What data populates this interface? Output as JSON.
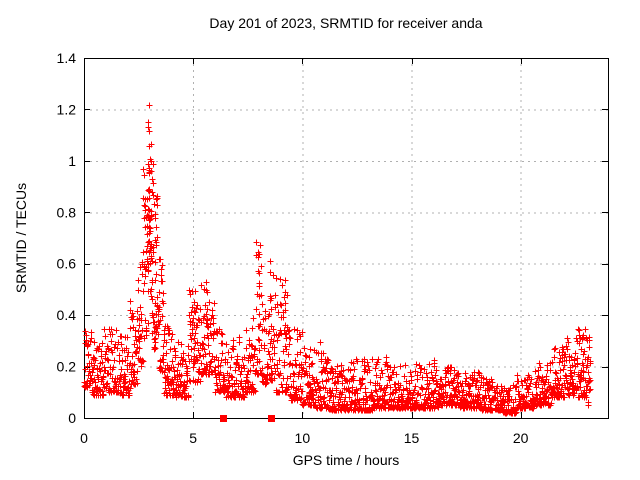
{
  "page": {
    "background_color": "#ffffff",
    "text_color": "#000000"
  },
  "chart_data": {
    "type": "scatter",
    "title": "Day 201 of 2023, SRMTID for receiver anda",
    "xlabel": "GPS time / hours",
    "ylabel": "SRMTID / TECUs",
    "xlim": [
      0,
      24
    ],
    "ylim": [
      0,
      1.4
    ],
    "xticks": [
      0,
      5,
      10,
      15,
      20
    ],
    "yticks": [
      0,
      0.2,
      0.4,
      0.6,
      0.8,
      1,
      1.2,
      1.4
    ],
    "grid": "dotted",
    "grid_color": "#b0b0b0",
    "border_color": "#000000",
    "legend": "none",
    "marker": {
      "shape": "plus",
      "color": "#ff0000",
      "size": 7
    },
    "notable_values": {
      "peak": {
        "x": 2.95,
        "y": 1.23
      },
      "secondary_peaks": [
        {
          "x": 3.3,
          "y": 0.86
        },
        {
          "x": 8.0,
          "y": 0.69
        },
        {
          "x": 8.55,
          "y": 0.64
        },
        {
          "x": 9.2,
          "y": 0.56
        },
        {
          "x": 5.6,
          "y": 0.53
        },
        {
          "x": 22.8,
          "y": 0.35
        }
      ],
      "quiet_baseline_range": [
        0.03,
        0.15
      ],
      "data_end_hour": 23.2
    },
    "series": [
      {
        "name": "SRMTID",
        "color": "#ff0000",
        "random_seed": 42,
        "envelope_segments_format": [
          "x0_hours",
          "x1_hours",
          "n_points",
          "y_base_TECU",
          "y_top_TECU",
          "bias_exponent"
        ],
        "envelope_segments": [
          [
            0.0,
            0.35,
            34,
            0.12,
            0.34,
            1.6
          ],
          [
            0.35,
            0.9,
            55,
            0.09,
            0.3,
            2.0
          ],
          [
            0.9,
            1.6,
            66,
            0.1,
            0.36,
            1.9
          ],
          [
            1.6,
            2.1,
            50,
            0.09,
            0.32,
            2.0
          ],
          [
            2.1,
            2.45,
            38,
            0.13,
            0.46,
            1.7
          ],
          [
            2.45,
            2.7,
            30,
            0.2,
            0.66,
            1.5
          ],
          [
            2.7,
            2.88,
            26,
            0.28,
            0.97,
            1.3
          ],
          [
            2.88,
            3.02,
            24,
            0.35,
            1.24,
            1.1
          ],
          [
            3.02,
            3.18,
            24,
            0.32,
            1.06,
            1.3
          ],
          [
            3.18,
            3.38,
            28,
            0.27,
            0.87,
            1.4
          ],
          [
            3.38,
            3.65,
            34,
            0.18,
            0.62,
            1.6
          ],
          [
            3.65,
            4.1,
            50,
            0.09,
            0.38,
            2.0
          ],
          [
            4.1,
            4.8,
            66,
            0.08,
            0.3,
            2.0
          ],
          [
            4.8,
            5.35,
            54,
            0.14,
            0.5,
            1.8
          ],
          [
            5.35,
            6.0,
            64,
            0.17,
            0.52,
            1.8
          ],
          [
            6.0,
            6.5,
            48,
            0.1,
            0.36,
            2.0
          ],
          [
            6.5,
            7.35,
            76,
            0.08,
            0.32,
            2.0
          ],
          [
            7.35,
            7.85,
            48,
            0.1,
            0.4,
            1.9
          ],
          [
            7.85,
            8.15,
            28,
            0.15,
            0.7,
            1.4
          ],
          [
            8.15,
            8.65,
            44,
            0.13,
            0.56,
            1.7
          ],
          [
            8.65,
            9.35,
            62,
            0.1,
            0.56,
            1.8
          ],
          [
            9.35,
            10.0,
            58,
            0.07,
            0.35,
            2.1
          ],
          [
            10.0,
            10.6,
            54,
            0.05,
            0.28,
            2.2
          ],
          [
            10.6,
            11.2,
            58,
            0.04,
            0.26,
            2.2
          ],
          [
            11.2,
            12.2,
            95,
            0.03,
            0.21,
            2.3
          ],
          [
            12.2,
            13.2,
            95,
            0.03,
            0.23,
            2.3
          ],
          [
            13.2,
            14.2,
            95,
            0.04,
            0.24,
            2.3
          ],
          [
            14.2,
            15.2,
            95,
            0.04,
            0.21,
            2.3
          ],
          [
            15.2,
            16.2,
            95,
            0.04,
            0.23,
            2.3
          ],
          [
            16.2,
            17.2,
            95,
            0.05,
            0.2,
            2.2
          ],
          [
            17.2,
            18.2,
            95,
            0.04,
            0.18,
            2.3
          ],
          [
            18.2,
            19.1,
            85,
            0.03,
            0.16,
            2.3
          ],
          [
            19.1,
            19.8,
            64,
            0.02,
            0.13,
            2.3
          ],
          [
            19.8,
            20.6,
            70,
            0.04,
            0.17,
            2.2
          ],
          [
            20.6,
            21.4,
            74,
            0.05,
            0.22,
            2.1
          ],
          [
            21.4,
            22.1,
            66,
            0.08,
            0.28,
            2.0
          ],
          [
            22.1,
            22.6,
            48,
            0.09,
            0.32,
            1.9
          ],
          [
            22.6,
            23.0,
            38,
            0.08,
            0.35,
            1.7
          ],
          [
            23.0,
            23.2,
            16,
            0.05,
            0.33,
            1.2
          ]
        ],
        "spike_columns_format": [
          "x_hours",
          "y_min_TECU",
          "y_max_TECU",
          "n_points"
        ],
        "spike_columns": [
          [
            2.95,
            0.55,
            1.23,
            13
          ],
          [
            3.07,
            0.5,
            1.08,
            9
          ],
          [
            3.3,
            0.4,
            0.86,
            8
          ],
          [
            5.05,
            0.25,
            0.5,
            6
          ],
          [
            5.6,
            0.3,
            0.53,
            6
          ],
          [
            8.0,
            0.3,
            0.69,
            8
          ],
          [
            8.55,
            0.28,
            0.64,
            6
          ],
          [
            9.2,
            0.25,
            0.56,
            6
          ],
          [
            10.3,
            0.12,
            0.3,
            5
          ],
          [
            10.85,
            0.1,
            0.3,
            5
          ],
          [
            22.8,
            0.15,
            0.35,
            6
          ],
          [
            23.08,
            0.06,
            0.3,
            6
          ]
        ]
      }
    ],
    "axis_gap_markers": {
      "shape": "filled-square",
      "color": "#ff0000",
      "size": 7,
      "points": [
        {
          "x": 6.37,
          "y": 0
        },
        {
          "x": 8.61,
          "y": 0
        }
      ]
    }
  }
}
